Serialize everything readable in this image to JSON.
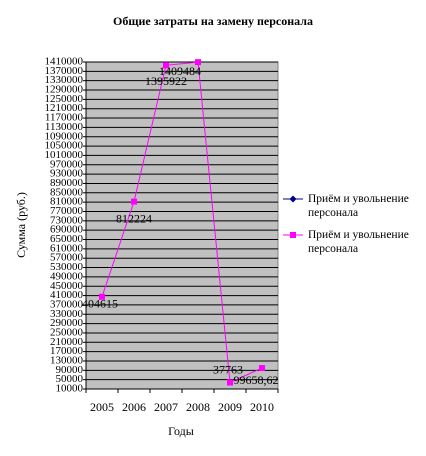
{
  "chart_data": {
    "type": "line",
    "title": "Общие затраты на замену персонала",
    "ylabel": "Сумма (руб.)",
    "xlabel": "Годы",
    "categories": [
      "2005",
      "2006",
      "2007",
      "2008",
      "2009",
      "2010"
    ],
    "series": [
      {
        "name": "Приём и увольнение персонала",
        "color": "#000080",
        "marker": "diamond",
        "values": [
          null,
          null,
          null,
          null,
          null,
          null
        ]
      },
      {
        "name": "Приём и увольнение персонала",
        "color": "#ff00ff",
        "marker": "square",
        "values": [
          404615,
          812224,
          1395922,
          1409484,
          37763,
          99658.62
        ],
        "value_labels": [
          "404615",
          "812224",
          "1395922",
          "1409484",
          "37763",
          "99658,62"
        ]
      }
    ],
    "ylim": [
      10000,
      1410000
    ],
    "yticks": [
      10000,
      50000,
      90000,
      130000,
      170000,
      210000,
      250000,
      290000,
      330000,
      370000,
      410000,
      450000,
      490000,
      530000,
      570000,
      610000,
      650000,
      690000,
      730000,
      770000,
      810000,
      850000,
      890000,
      930000,
      970000,
      1010000,
      1050000,
      1090000,
      1130000,
      1170000,
      1210000,
      1250000,
      1290000,
      1330000,
      1370000,
      1410000
    ],
    "grid": true,
    "plot_background": "#c0c0c0",
    "legend": "right"
  }
}
